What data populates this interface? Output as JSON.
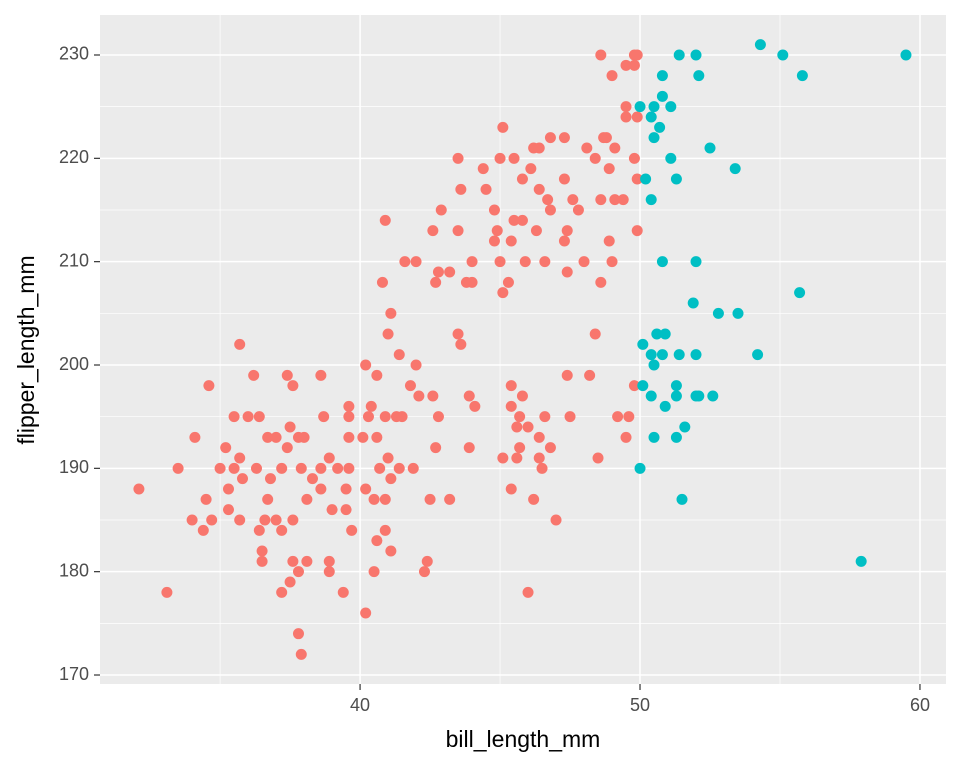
{
  "chart_data": {
    "type": "scatter",
    "x_label": "bill_length_mm",
    "y_label": "flipper_length_mm",
    "xlim": [
      30.71,
      60.93
    ],
    "ylim": [
      169.13,
      233.87
    ],
    "xticks": [
      40,
      50,
      60
    ],
    "yticks": [
      170,
      180,
      190,
      200,
      210,
      220,
      230
    ],
    "grid": true,
    "minor_grid": true,
    "series": [
      {
        "color": "#F8766D",
        "x": [
          48.6,
          49.8,
          49.9,
          49.0,
          49.5,
          49.8,
          49.5,
          49.9,
          49.5,
          45.1,
          46.8,
          47.3,
          48.7,
          48.8,
          48.1,
          49.1,
          46.2,
          46.4,
          43.5,
          45.0,
          45.5,
          48.4,
          49.8,
          44.4,
          46.1,
          48.9,
          45.8,
          47.3,
          49.9,
          43.6,
          44.5,
          46.4,
          49.1,
          49.4,
          48.6,
          46.7,
          47.6,
          42.9,
          44.8,
          45.5,
          45.8,
          40.9,
          46.8,
          47.8,
          42.6,
          43.5,
          44.9,
          46.3,
          47.4,
          49.9,
          44.8,
          45.4,
          47.3,
          48.9,
          41.6,
          42.0,
          44.0,
          45.0,
          45.9,
          48.0,
          49.0,
          42.8,
          43.2,
          46.6,
          47.4,
          40.8,
          42.7,
          43.8,
          44.0,
          45.3,
          48.6,
          45.1,
          41.1,
          41.0,
          43.5,
          48.4,
          35.7,
          43.6,
          41.4,
          42.0,
          40.2,
          40.6,
          47.4,
          48.2,
          36.2,
          37.4,
          38.6,
          41.8,
          45.4,
          49.8,
          34.6,
          37.6,
          42.1,
          42.6,
          43.9,
          45.8,
          40.4,
          39.6,
          44.1,
          45.4,
          45.7,
          46.6,
          47.5,
          49.2,
          49.6,
          35.5,
          36.0,
          36.4,
          38.7,
          39.6,
          40.3,
          40.9,
          41.3,
          41.5,
          42.8,
          37.5,
          45.6,
          46.0,
          34.1,
          36.7,
          37.0,
          37.8,
          38.0,
          39.6,
          40.1,
          40.6,
          46.4,
          49.5,
          35.2,
          37.4,
          42.7,
          43.9,
          45.7,
          46.8,
          35.7,
          38.9,
          41.0,
          45.1,
          45.6,
          46.4,
          48.5,
          33.5,
          35.0,
          35.5,
          36.3,
          37.2,
          37.9,
          38.6,
          39.2,
          39.6,
          40.7,
          41.4,
          41.9,
          46.5,
          35.8,
          36.8,
          38.3,
          41.1,
          32.1,
          35.3,
          38.6,
          39.5,
          40.2,
          45.4,
          34.5,
          36.7,
          38.1,
          40.5,
          40.9,
          42.5,
          43.2,
          46.2,
          35.3,
          39.0,
          39.5,
          34.7,
          34.0,
          35.7,
          36.6,
          37.0,
          37.6,
          47.0,
          34.4,
          36.4,
          37.2,
          39.7,
          40.9,
          40.6,
          36.5,
          41.1,
          36.5,
          37.6,
          38.1,
          38.9,
          42.4,
          37.8,
          38.9,
          40.5,
          42.3,
          37.5,
          33.1,
          37.2,
          39.4,
          46.0,
          40.2,
          37.8,
          37.9
        ],
        "values": [
          230,
          230,
          230,
          228,
          229,
          229,
          225,
          224,
          224,
          223,
          222,
          222,
          222,
          222,
          221,
          221,
          221,
          221,
          220,
          220,
          220,
          220,
          220,
          219,
          219,
          219,
          218,
          218,
          218,
          217,
          217,
          217,
          216,
          216,
          216,
          216,
          216,
          215,
          215,
          214,
          214,
          214,
          215,
          215,
          213,
          213,
          213,
          213,
          213,
          213,
          212,
          212,
          212,
          212,
          210,
          210,
          210,
          210,
          210,
          210,
          210,
          209,
          209,
          210,
          209,
          208,
          208,
          208,
          208,
          208,
          208,
          207,
          205,
          203,
          203,
          203,
          202,
          202,
          201,
          200,
          200,
          199,
          199,
          199,
          199,
          199,
          199,
          198,
          198,
          198,
          198,
          198,
          197,
          197,
          197,
          197,
          196,
          196,
          196,
          196,
          195,
          195,
          195,
          195,
          195,
          195,
          195,
          195,
          195,
          195,
          195,
          195,
          195,
          195,
          195,
          194,
          194,
          194,
          193,
          193,
          193,
          193,
          193,
          193,
          193,
          193,
          193,
          193,
          192,
          192,
          192,
          192,
          192,
          192,
          191,
          191,
          191,
          191,
          191,
          191,
          191,
          190,
          190,
          190,
          190,
          190,
          190,
          190,
          190,
          190,
          190,
          190,
          190,
          190,
          189,
          189,
          189,
          189,
          188,
          188,
          188,
          188,
          188,
          188,
          187,
          187,
          187,
          187,
          187,
          187,
          187,
          187,
          186,
          186,
          186,
          185,
          185,
          185,
          185,
          185,
          185,
          185,
          184,
          184,
          184,
          184,
          184,
          183,
          182,
          182,
          181,
          181,
          181,
          181,
          181,
          180,
          180,
          180,
          180,
          179,
          178,
          178,
          178,
          178,
          176,
          174,
          172
        ]
      },
      {
        "color": "#00BFC4",
        "x": [
          50.0,
          50.5,
          50.8,
          51.4,
          52.0,
          54.3,
          55.1,
          55.8,
          59.5,
          52.1,
          50.8,
          51.1,
          50.4,
          50.7,
          50.5,
          52.5,
          51.1,
          53.4,
          50.2,
          51.3,
          50.4,
          50.8,
          52.0,
          51.9,
          55.7,
          52.8,
          53.5,
          50.6,
          50.9,
          50.1,
          50.4,
          50.8,
          51.4,
          52.0,
          54.2,
          50.5,
          50.1,
          51.3,
          50.4,
          51.3,
          52.0,
          52.1,
          52.6,
          50.9,
          51.6,
          50.5,
          51.3,
          50.0,
          51.5,
          57.9
        ],
        "values": [
          225,
          225,
          228,
          230,
          230,
          231,
          230,
          228,
          230,
          228,
          226,
          225,
          224,
          223,
          222,
          221,
          220,
          219,
          218,
          218,
          216,
          210,
          210,
          206,
          207,
          205,
          205,
          203,
          203,
          202,
          201,
          201,
          201,
          201,
          201,
          200,
          198,
          198,
          197,
          197,
          197,
          197,
          197,
          196,
          194,
          193,
          193,
          190,
          187,
          181
        ]
      }
    ]
  }
}
